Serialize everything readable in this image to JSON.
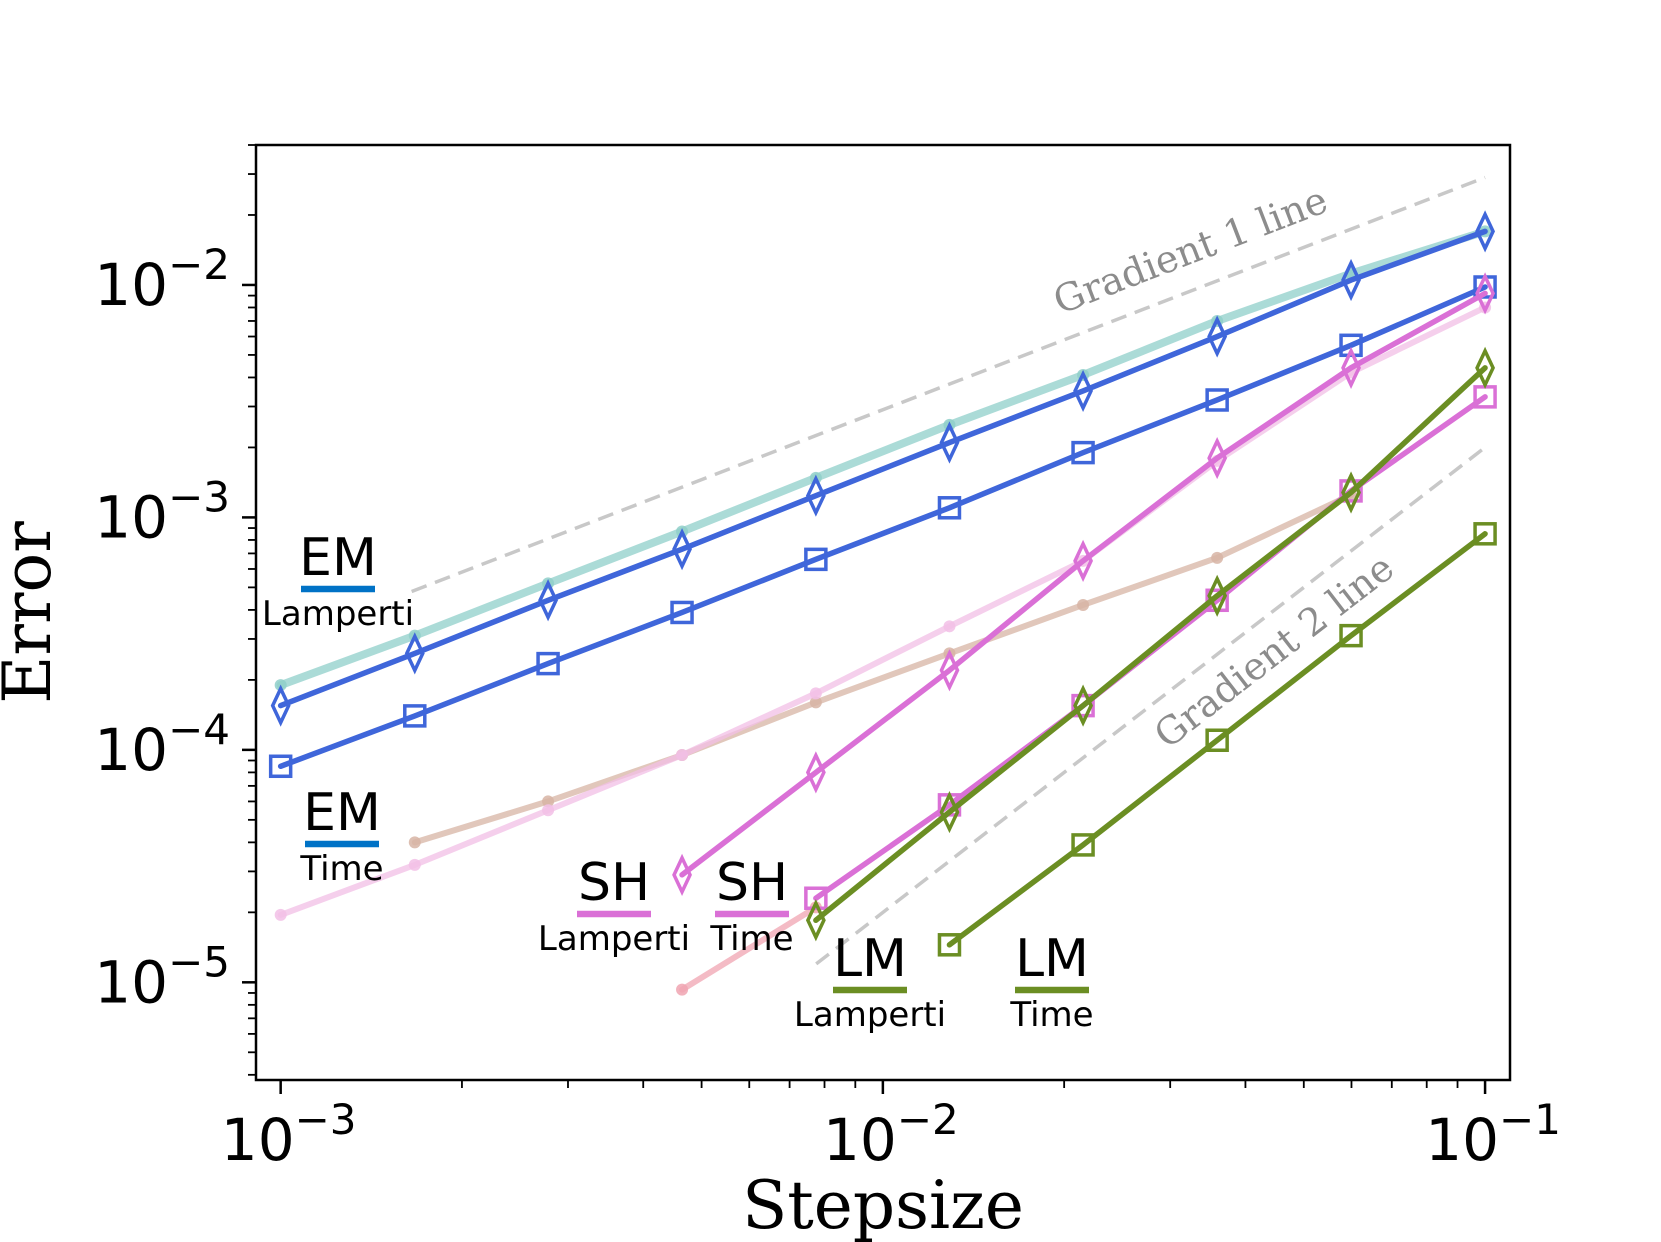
{
  "chart_data": {
    "type": "line",
    "title": "",
    "xlabel": "Stepsize",
    "ylabel": "Error",
    "xscale": "log",
    "yscale": "log",
    "xlim": [
      0.00091,
      0.11
    ],
    "ylim": [
      3.8e-06,
      0.04
    ],
    "xticks": [
      {
        "value": 0.001,
        "base": "10",
        "exp": "−3"
      },
      {
        "value": 0.01,
        "base": "10",
        "exp": "−2"
      },
      {
        "value": 0.1,
        "base": "10",
        "exp": "−1"
      }
    ],
    "yticks": [
      {
        "value": 1e-05,
        "base": "10",
        "exp": "−5"
      },
      {
        "value": 0.0001,
        "base": "10",
        "exp": "−4"
      },
      {
        "value": 0.001,
        "base": "10",
        "exp": "−3"
      },
      {
        "value": 0.01,
        "base": "10",
        "exp": "−2"
      }
    ],
    "reference_lines": [
      {
        "name": "gradient-1",
        "label": "Gradient 1 line",
        "color": "#c8c8c8",
        "x": [
          0.00165,
          0.1
        ],
        "y": [
          0.00048,
          0.029
        ]
      },
      {
        "name": "gradient-2",
        "label": "Gradient 2 line",
        "color": "#c8c8c8",
        "x": [
          0.00775,
          0.1
        ],
        "y": [
          1.2e-05,
          0.002
        ]
      }
    ],
    "series": [
      {
        "name": "EM Lamperti (pale)",
        "color": "#8fcfc9",
        "marker": "dot",
        "faded": true,
        "width": 8,
        "x": [
          0.001,
          0.00167,
          0.00278,
          0.00464,
          0.00774,
          0.0129,
          0.0215,
          0.0359,
          0.0599,
          0.1
        ],
        "y": [
          0.00019,
          0.00031,
          0.00052,
          0.00087,
          0.00148,
          0.0025,
          0.0041,
          0.007,
          0.0112,
          0.017
        ]
      },
      {
        "name": "EM Lamperti",
        "color": "#3f66da",
        "marker": "diamond",
        "x": [
          0.001,
          0.00167,
          0.00278,
          0.00464,
          0.00774,
          0.0129,
          0.0215,
          0.0359,
          0.0599,
          0.1
        ],
        "y": [
          0.000155,
          0.00026,
          0.00044,
          0.00073,
          0.00124,
          0.0021,
          0.0035,
          0.006,
          0.0105,
          0.017
        ]
      },
      {
        "name": "EM Time",
        "color": "#3f66da",
        "marker": "square",
        "x": [
          0.001,
          0.00167,
          0.00278,
          0.00464,
          0.00774,
          0.0129,
          0.0215,
          0.0359,
          0.0599,
          0.1
        ],
        "y": [
          8.5e-05,
          0.00014,
          0.000235,
          0.00039,
          0.00066,
          0.0011,
          0.0019,
          0.0032,
          0.0055,
          0.0098
        ]
      },
      {
        "name": "LM Time (pale)",
        "color": "#d7b4a4",
        "marker": "dot",
        "faded": true,
        "width": 6,
        "x": [
          0.00167,
          0.00278,
          0.00464,
          0.00774,
          0.0129,
          0.0215,
          0.0359,
          0.0599
        ],
        "y": [
          4e-05,
          6e-05,
          9.5e-05,
          0.00016,
          0.00026,
          0.00042,
          0.00067,
          0.00125
        ]
      },
      {
        "name": "SH Time (pale)",
        "color": "#f2bfe6",
        "marker": "dot",
        "faded": true,
        "width": 6,
        "x": [
          0.001,
          0.00167,
          0.00278,
          0.00464,
          0.00774,
          0.0129,
          0.0215,
          0.0359,
          0.0599,
          0.1
        ],
        "y": [
          1.95e-05,
          3.2e-05,
          5.5e-05,
          9.5e-05,
          0.000175,
          0.00034,
          0.00065,
          0.00175,
          0.0042,
          0.008
        ]
      },
      {
        "name": "SH Lamperti (pale)",
        "color": "#f0a4b2",
        "marker": "dot",
        "faded": true,
        "width": 6,
        "x": [
          0.00464,
          0.00774
        ],
        "y": [
          9.3e-06,
          2.1e-05
        ]
      },
      {
        "name": "SH Lamperti",
        "color": "#da70d6",
        "marker": "diamond",
        "x": [
          0.00464,
          0.00774,
          0.0129,
          0.0215,
          0.0359,
          0.0599,
          0.1
        ],
        "y": [
          2.9e-05,
          8e-05,
          0.00022,
          0.00065,
          0.0018,
          0.0044,
          0.0092
        ]
      },
      {
        "name": "SH Time",
        "color": "#da70d6",
        "marker": "square",
        "x": [
          0.00774,
          0.0129,
          0.0215,
          0.0359,
          0.0599,
          0.1
        ],
        "y": [
          2.3e-05,
          5.8e-05,
          0.000155,
          0.00044,
          0.0013,
          0.0033
        ]
      },
      {
        "name": "LM Lamperti",
        "color": "#6b8e23",
        "marker": "diamond",
        "x": [
          0.00774,
          0.0129,
          0.0215,
          0.0359,
          0.0599,
          0.1
        ],
        "y": [
          1.85e-05,
          5.4e-05,
          0.000155,
          0.00046,
          0.00128,
          0.0044
        ]
      },
      {
        "name": "LM Time",
        "color": "#6b8e23",
        "marker": "square",
        "x": [
          0.0129,
          0.0215,
          0.0359,
          0.0599,
          0.1
        ],
        "y": [
          1.45e-05,
          3.9e-05,
          0.00011,
          0.00031,
          0.00085
        ]
      }
    ],
    "annotations": [
      {
        "name": "em-lamperti",
        "title": "EM",
        "subtitle": "Lamperti",
        "color": "#0072c6"
      },
      {
        "name": "em-time",
        "title": "EM",
        "subtitle": "Time",
        "color": "#0072c6"
      },
      {
        "name": "sh-lamperti",
        "title": "SH",
        "subtitle": "Lamperti",
        "color": "#da70d6"
      },
      {
        "name": "sh-time",
        "title": "SH",
        "subtitle": "Time",
        "color": "#da70d6"
      },
      {
        "name": "lm-lamperti",
        "title": "LM",
        "subtitle": "Lamperti",
        "color": "#6b8e23"
      },
      {
        "name": "lm-time",
        "title": "LM",
        "subtitle": "Time",
        "color": "#6b8e23"
      }
    ]
  }
}
